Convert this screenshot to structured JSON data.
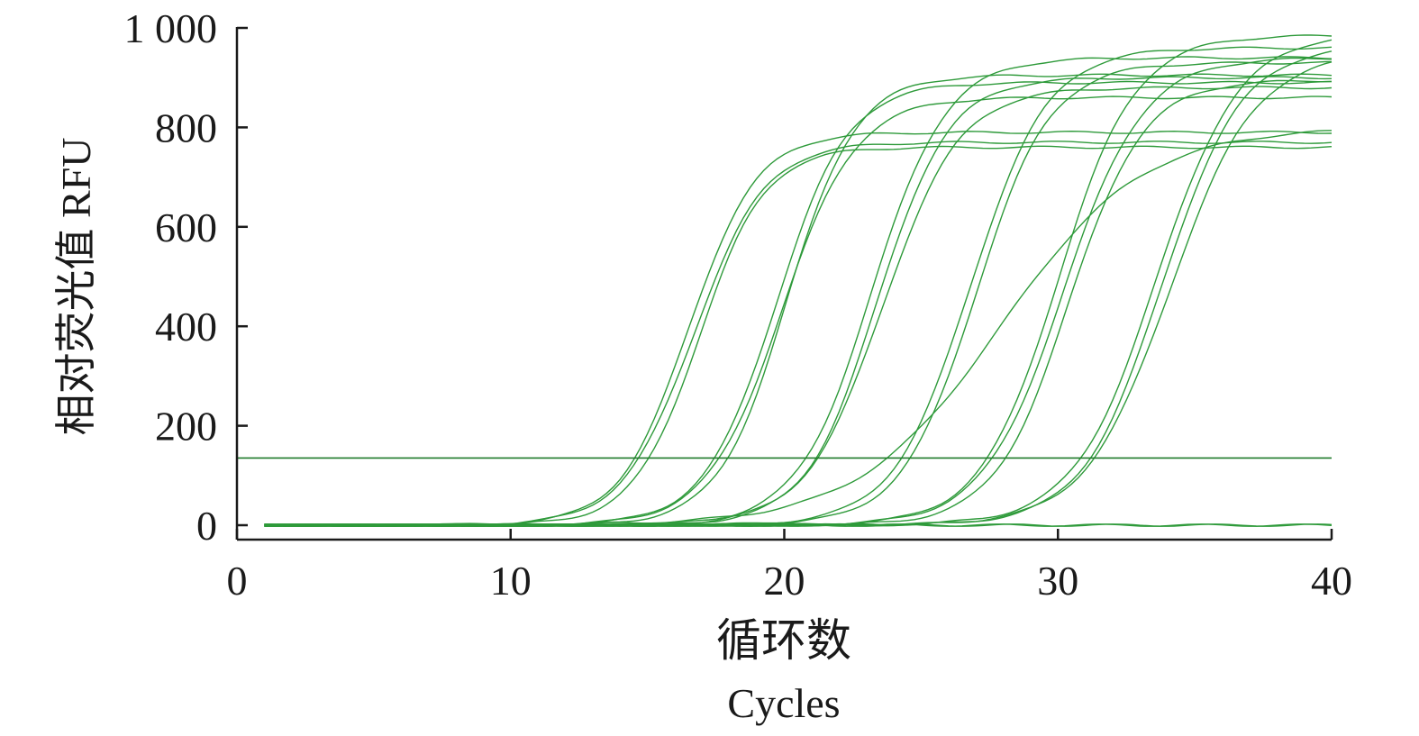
{
  "chart_data": {
    "type": "line",
    "xlabel": [
      "循环数",
      "Cycles"
    ],
    "ylabel": "相对荧光值 RFU",
    "xlim": [
      0,
      40
    ],
    "ylim": [
      0,
      1000
    ],
    "xticks": [
      0,
      10,
      20,
      30,
      40
    ],
    "xtick_labels": [
      "0",
      "10",
      "20",
      "30",
      "40"
    ],
    "yticks": [
      0,
      200,
      400,
      600,
      800,
      1000
    ],
    "ytick_labels": [
      "0",
      "200",
      "400",
      "600",
      "800",
      "1 000"
    ],
    "grid": false,
    "legend": "none",
    "colors": {
      "curve": "#2e9a3a",
      "threshold": "#1f7a2a",
      "axis": "#1a1a1a"
    },
    "threshold": 135,
    "x_range": [
      1,
      40
    ],
    "curve_model": "sigmoid",
    "series": [
      {
        "midpoint": 16.5,
        "slope": 1.25,
        "plateau": 790
      },
      {
        "midpoint": 16.7,
        "slope": 1.3,
        "plateau": 770
      },
      {
        "midpoint": 16.9,
        "slope": 1.2,
        "plateau": 760
      },
      {
        "midpoint": 19.7,
        "slope": 1.3,
        "plateau": 890
      },
      {
        "midpoint": 19.9,
        "slope": 1.35,
        "plateau": 860
      },
      {
        "midpoint": 20.1,
        "slope": 1.25,
        "plateau": 905
      },
      {
        "midpoint": 23.2,
        "slope": 1.35,
        "plateau": 940
      },
      {
        "midpoint": 23.4,
        "slope": 1.3,
        "plateau": 900
      },
      {
        "midpoint": 23.6,
        "slope": 1.4,
        "plateau": 880
      },
      {
        "midpoint": 26.8,
        "slope": 1.4,
        "plateau": 960
      },
      {
        "midpoint": 27.0,
        "slope": 1.35,
        "plateau": 930
      },
      {
        "midpoint": 27.9,
        "slope": 2.6,
        "plateau": 800
      },
      {
        "midpoint": 30.0,
        "slope": 1.4,
        "plateau": 985
      },
      {
        "midpoint": 30.2,
        "slope": 1.45,
        "plateau": 940
      },
      {
        "midpoint": 30.4,
        "slope": 1.35,
        "plateau": 895
      },
      {
        "midpoint": 33.6,
        "slope": 1.5,
        "plateau": 990
      },
      {
        "midpoint": 33.8,
        "slope": 1.45,
        "plateau": 965
      },
      {
        "midpoint": 34.1,
        "slope": 1.55,
        "plateau": 950
      },
      {
        "midpoint": 60.0,
        "slope": 1.0,
        "plateau": 0
      },
      {
        "midpoint": 60.0,
        "slope": 1.0,
        "plateau": 0
      }
    ]
  }
}
